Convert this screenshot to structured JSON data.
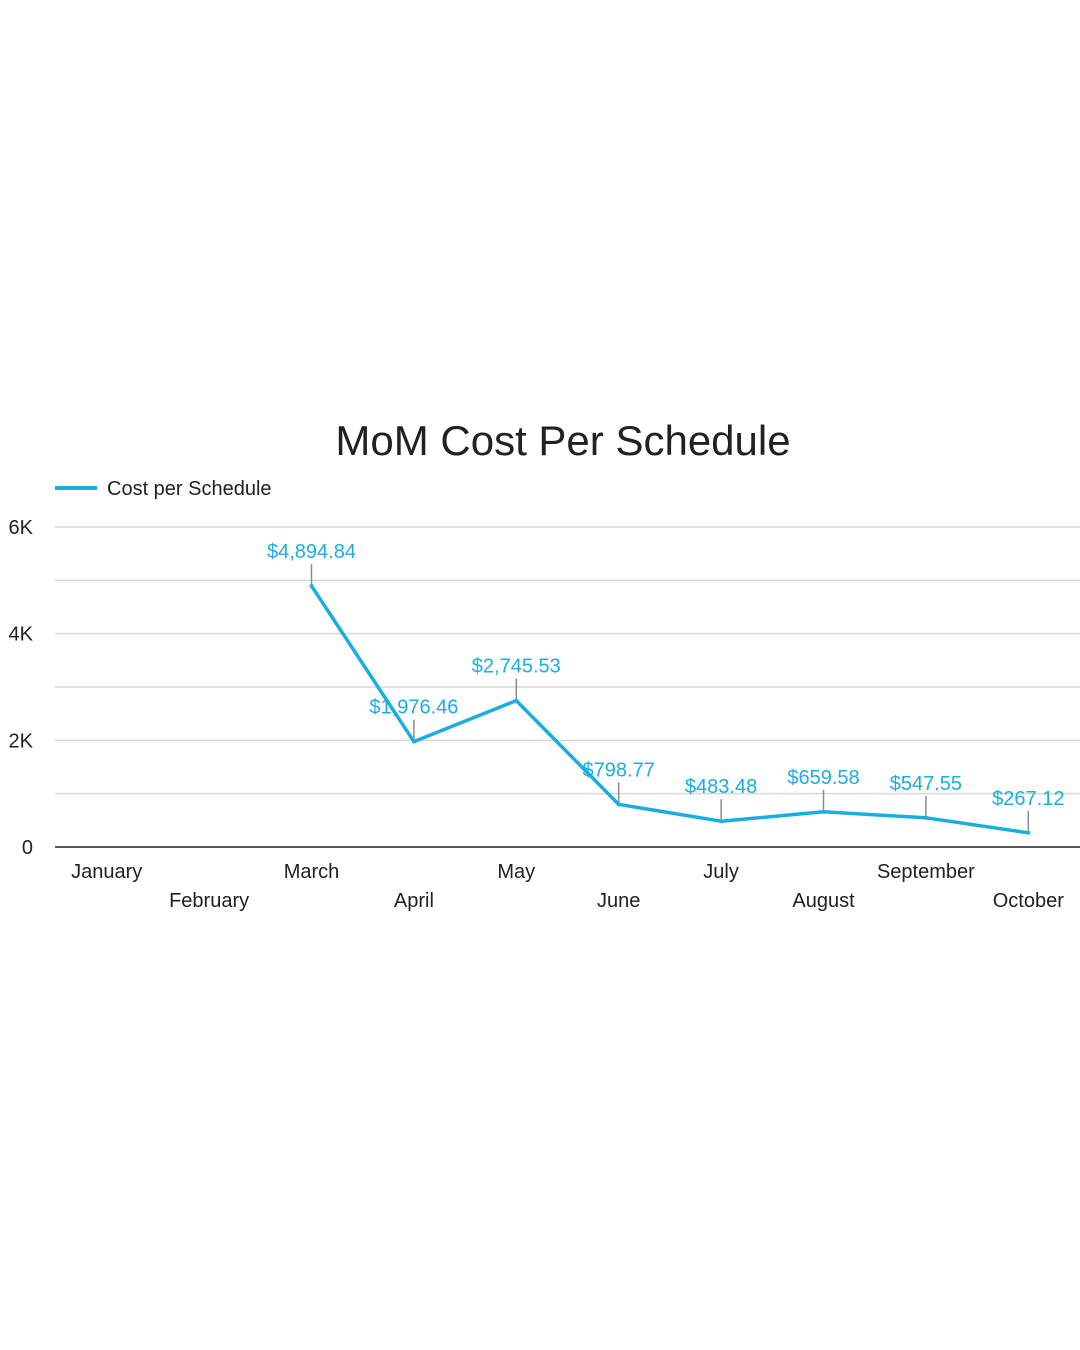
{
  "chart_data": {
    "type": "line",
    "title": "MoM Cost Per Schedule",
    "xlabel": "",
    "ylabel": "",
    "ylim": [
      0,
      6000
    ],
    "yticks": [
      0,
      2000,
      4000,
      6000
    ],
    "ytick_labels": [
      "0",
      "2K",
      "4K",
      "6K"
    ],
    "minor_gridlines": [
      1000,
      3000,
      5000
    ],
    "legend_position": "top-left",
    "categories": [
      "January",
      "February",
      "March",
      "April",
      "May",
      "June",
      "July",
      "August",
      "September",
      "October"
    ],
    "series": [
      {
        "name": "Cost per Schedule",
        "color": "#1aaee0",
        "values": [
          null,
          null,
          4894.84,
          1976.46,
          2745.53,
          798.77,
          483.48,
          659.58,
          547.55,
          267.12
        ],
        "data_labels": [
          null,
          null,
          "$4,894.84",
          "$1,976.46",
          "$2,745.53",
          "$798.77",
          "$483.48",
          "$659.58",
          "$547.55",
          "$267.12"
        ]
      }
    ]
  }
}
